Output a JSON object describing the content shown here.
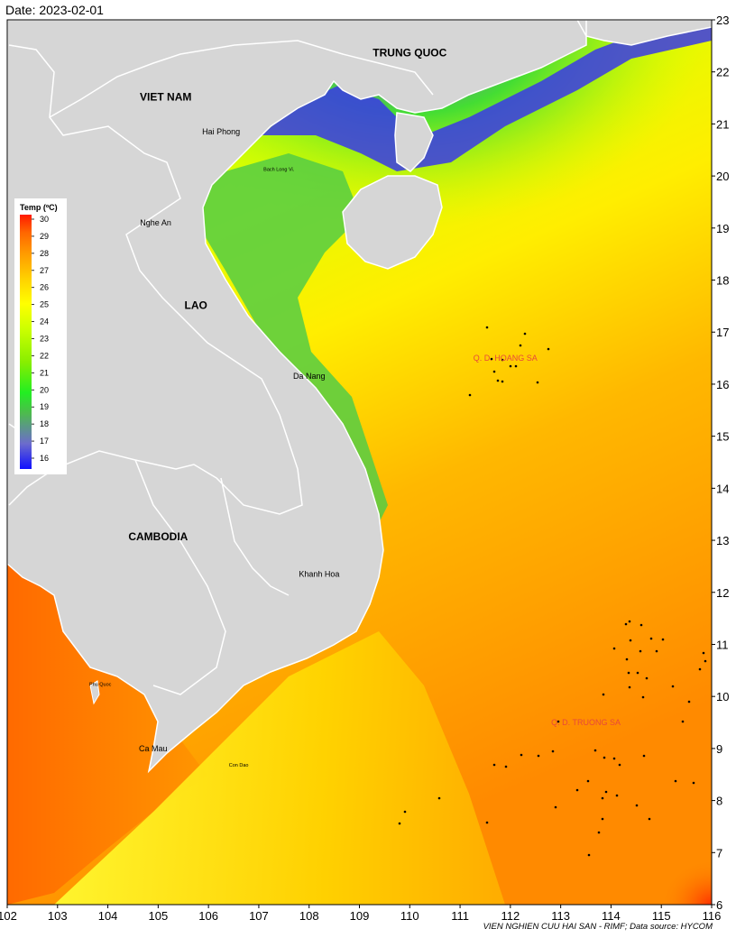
{
  "date_label": "Date: 2023-02-01",
  "credit": "VIEN NGHIEN CUU HAI SAN - RIMF; Data source: HYCOM",
  "map": {
    "lon_range": [
      102,
      116
    ],
    "lat_range": [
      6,
      23
    ],
    "x_ticks": [
      "102",
      "103",
      "104",
      "105",
      "106",
      "107",
      "108",
      "109",
      "110",
      "111",
      "112",
      "113",
      "114",
      "115",
      "116"
    ],
    "y_ticks": [
      "6",
      "7",
      "8",
      "9",
      "10",
      "11",
      "12",
      "13",
      "14",
      "15",
      "16",
      "17",
      "18",
      "19",
      "20",
      "21",
      "22",
      "23"
    ],
    "land_color": "#d6d6d6",
    "border_color": "#ffffff"
  },
  "labels": {
    "countries": [
      {
        "text": "TRUNG QUOC",
        "lon": 110.0,
        "lat": 22.3
      },
      {
        "text": "VIET NAM",
        "lon": 105.15,
        "lat": 21.45
      },
      {
        "text": "LAO",
        "lon": 105.75,
        "lat": 17.45
      },
      {
        "text": "CAMBODIA",
        "lon": 105.0,
        "lat": 13.0
      }
    ],
    "places": [
      {
        "text": "Hai Phong",
        "lon": 106.25,
        "lat": 20.8
      },
      {
        "text": "Nghe An",
        "lon": 104.95,
        "lat": 19.05
      },
      {
        "text": "Da Nang",
        "lon": 108.0,
        "lat": 16.1
      },
      {
        "text": "Khanh Hoa",
        "lon": 108.2,
        "lat": 12.3
      },
      {
        "text": "Ca Mau",
        "lon": 104.9,
        "lat": 8.95
      }
    ],
    "small_places": [
      {
        "text": "Bach Long Vi.",
        "lon": 107.4,
        "lat": 20.1
      },
      {
        "text": "Phu Quoc",
        "lon": 103.85,
        "lat": 10.2
      },
      {
        "text": "Con Dao",
        "lon": 106.6,
        "lat": 8.65
      }
    ],
    "archipelagos": [
      {
        "text": "Q. D. HOANG SA",
        "lon": 111.9,
        "lat": 16.45
      },
      {
        "text": "Q. D. TRUONG SA",
        "lon": 113.5,
        "lat": 9.45
      }
    ]
  },
  "legend": {
    "title": "Temp (ºC)",
    "min": 16,
    "max": 30,
    "ticks": [
      "30",
      "29",
      "28",
      "27",
      "26",
      "25",
      "24",
      "23",
      "22",
      "21",
      "20",
      "19",
      "18",
      "17",
      "16"
    ],
    "colors": [
      "#1010ff",
      "#6c6ccc",
      "#4dbb4d",
      "#22ee22",
      "#88ee00",
      "#ccff00",
      "#ffff00",
      "#ffd000",
      "#ff9900",
      "#ff6600",
      "#ff1a00"
    ]
  }
}
